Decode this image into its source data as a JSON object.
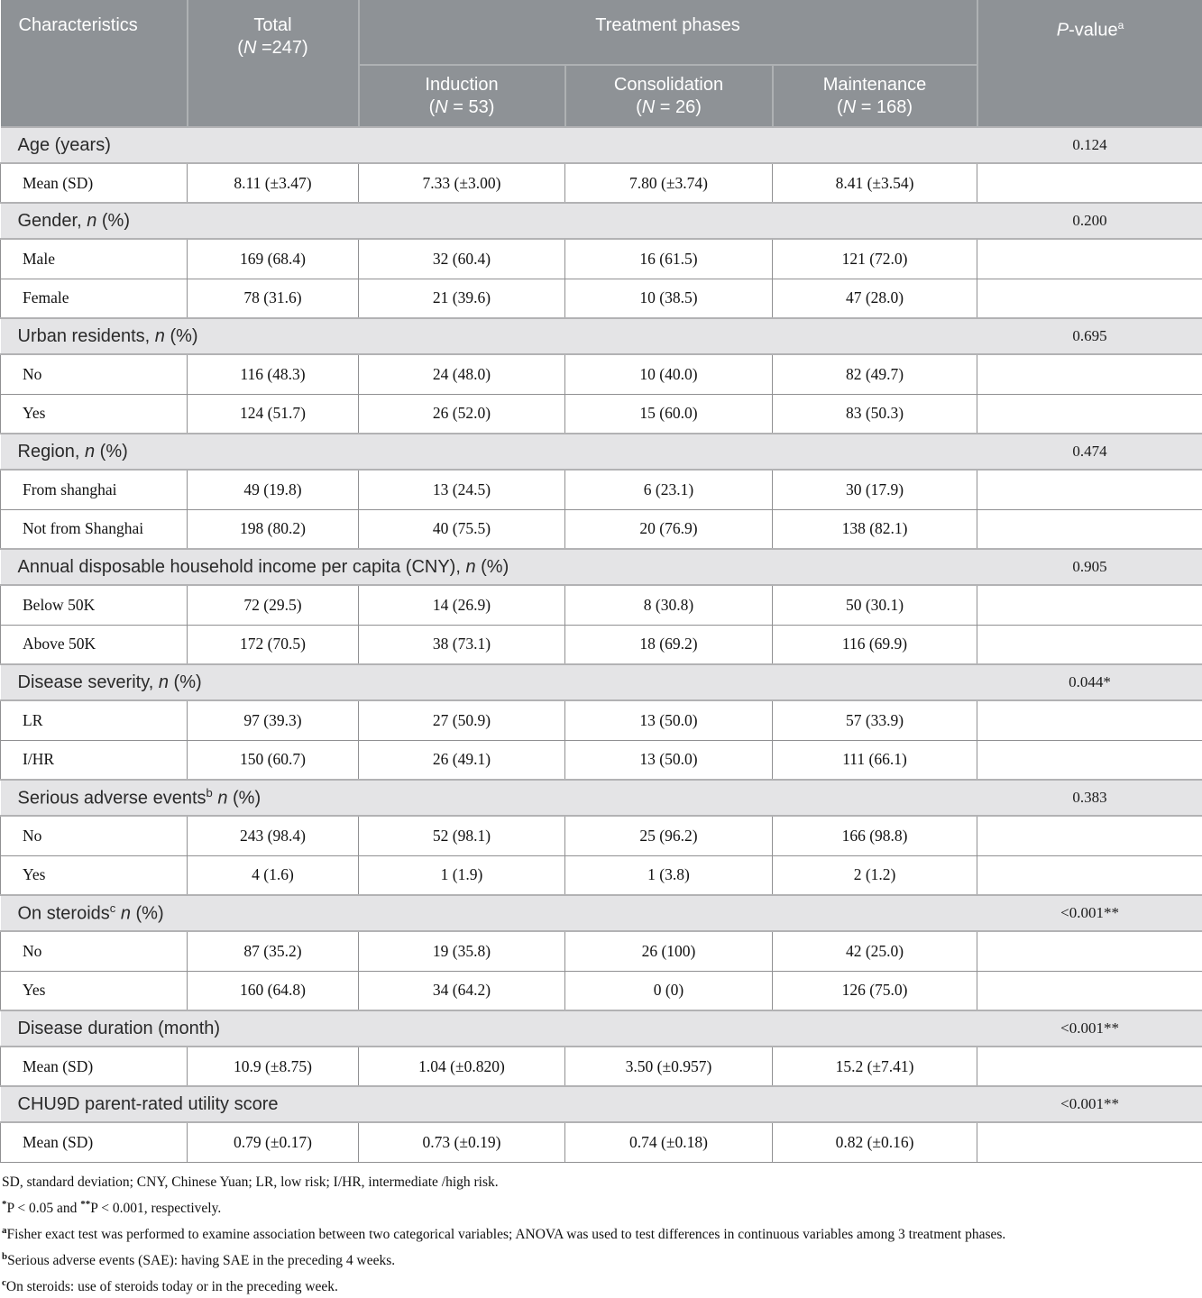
{
  "colors": {
    "header_bg": "#8e9296",
    "header_divider": "#aeb1b3",
    "section_bg": "#e4e4e6",
    "body_border": "#909092",
    "header_text": "#ffffff"
  },
  "table": {
    "header": {
      "characteristics": "Characteristics",
      "total_html": "Total<br>(<i>N</i> =247)",
      "treatment_phases": "Treatment phases",
      "pvalue_html": "<i>P</i>-value<sup>a</sup>",
      "subcolumns": [
        {
          "label_html": "Induction<br>(<i>N</i> = 53)"
        },
        {
          "label_html": "Consolidation<br>(<i>N</i> = 26)"
        },
        {
          "label_html": "Maintenance<br>(<i>N</i> = 168)"
        }
      ]
    },
    "sections": [
      {
        "title_html": "Age (years)",
        "pvalue": "0.124",
        "rows": [
          {
            "label": "Mean (SD)",
            "values": [
              "8.11 (±3.47)",
              "7.33 (±3.00)",
              "7.80 (±3.74)",
              "8.41 (±3.54)"
            ]
          }
        ]
      },
      {
        "title_html": "Gender, <i>n</i> (%)",
        "pvalue": "0.200",
        "rows": [
          {
            "label": "Male",
            "values": [
              "169 (68.4)",
              "32 (60.4)",
              "16 (61.5)",
              "121 (72.0)"
            ]
          },
          {
            "label": "Female",
            "values": [
              "78 (31.6)",
              "21 (39.6)",
              "10 (38.5)",
              "47 (28.0)"
            ]
          }
        ]
      },
      {
        "title_html": "Urban residents, <i>n</i> (%)",
        "pvalue": "0.695",
        "rows": [
          {
            "label": "No",
            "values": [
              "116 (48.3)",
              "24 (48.0)",
              "10 (40.0)",
              "82 (49.7)"
            ]
          },
          {
            "label": "Yes",
            "values": [
              "124 (51.7)",
              "26 (52.0)",
              "15 (60.0)",
              "83 (50.3)"
            ]
          }
        ]
      },
      {
        "title_html": "Region, <i>n</i> (%)",
        "pvalue": "0.474",
        "rows": [
          {
            "label": "From shanghai",
            "values": [
              "49 (19.8)",
              "13 (24.5)",
              "6 (23.1)",
              "30 (17.9)"
            ]
          },
          {
            "label": "Not from Shanghai",
            "values": [
              "198 (80.2)",
              "40 (75.5)",
              "20 (76.9)",
              "138 (82.1)"
            ]
          }
        ]
      },
      {
        "title_html": "Annual disposable household income per capita (CNY), <i>n</i> (%)",
        "pvalue": "0.905",
        "rows": [
          {
            "label": "Below 50K",
            "values": [
              "72 (29.5)",
              "14 (26.9)",
              "8 (30.8)",
              "50 (30.1)"
            ]
          },
          {
            "label": "Above 50K",
            "values": [
              "172 (70.5)",
              "38 (73.1)",
              "18 (69.2)",
              "116 (69.9)"
            ]
          }
        ]
      },
      {
        "title_html": "Disease severity, <i>n</i> (%)",
        "pvalue": "0.044*",
        "rows": [
          {
            "label": "LR",
            "values": [
              "97 (39.3)",
              "27 (50.9)",
              "13 (50.0)",
              "57 (33.9)"
            ]
          },
          {
            "label": "I/HR",
            "values": [
              "150 (60.7)",
              "26 (49.1)",
              "13 (50.0)",
              "111 (66.1)"
            ]
          }
        ]
      },
      {
        "title_html": "Serious adverse events<sup>b</sup> <i>n</i> (%)",
        "pvalue": "0.383",
        "rows": [
          {
            "label": "No",
            "values": [
              "243 (98.4)",
              "52 (98.1)",
              "25 (96.2)",
              "166 (98.8)"
            ]
          },
          {
            "label": "Yes",
            "values": [
              "4 (1.6)",
              "1 (1.9)",
              "1 (3.8)",
              "2 (1.2)"
            ]
          }
        ]
      },
      {
        "title_html": "On steroids<sup>c</sup> <i>n</i> (%)",
        "pvalue": "<0.001**",
        "rows": [
          {
            "label": "No",
            "values": [
              "87 (35.2)",
              "19 (35.8)",
              "26 (100)",
              "42 (25.0)"
            ]
          },
          {
            "label": "Yes",
            "values": [
              "160 (64.8)",
              "34 (64.2)",
              "0 (0)",
              "126 (75.0)"
            ]
          }
        ]
      },
      {
        "title_html": "Disease duration (month)",
        "pvalue": "<0.001**",
        "rows": [
          {
            "label": "Mean (SD)",
            "values": [
              "10.9 (±8.75)",
              "1.04 (±0.820)",
              "3.50 (±0.957)",
              "15.2 (±7.41)"
            ]
          }
        ]
      },
      {
        "title_html": "CHU9D parent-rated utility score",
        "pvalue": "<0.001**",
        "rows": [
          {
            "label": "Mean (SD)",
            "values": [
              "0.79 (±0.17)",
              "0.73 (±0.19)",
              "0.74 (±0.18)",
              "0.82 (±0.16)"
            ]
          }
        ]
      }
    ],
    "footnotes_html": [
      "SD, standard deviation; CNY, Chinese Yuan; LR, low risk; I/HR, intermediate /high risk.",
      "<sup>*</sup>P &lt; 0.05 and <sup>**</sup>P &lt; 0.001, respectively.",
      "<sup>a</sup>Fisher exact test was performed to examine association between two categorical variables; ANOVA was used to test differences in continuous variables among 3 treatment phases.",
      "<sup>b</sup>Serious adverse events (SAE): having SAE in the preceding 4 weeks.",
      "<sup>c</sup>On steroids: use of steroids today or in the preceding week."
    ]
  }
}
